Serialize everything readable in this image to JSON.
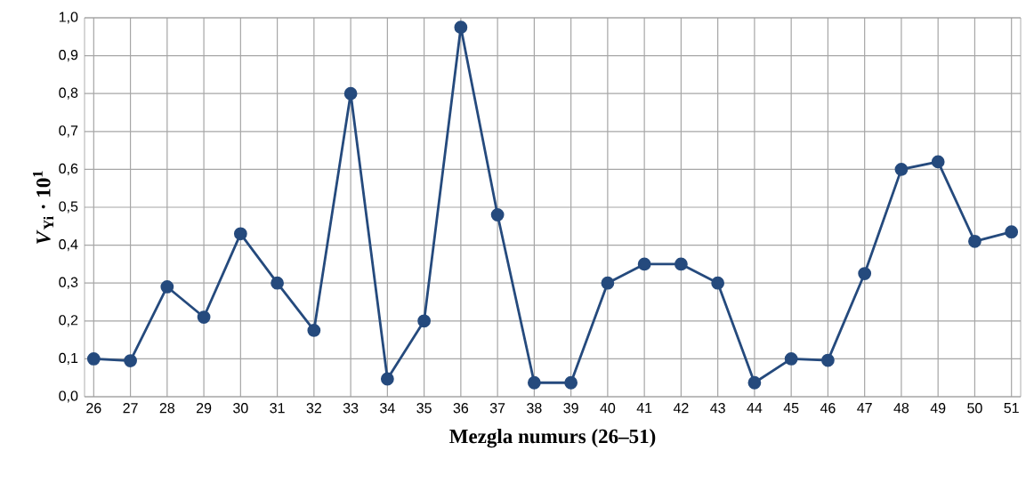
{
  "chart_data": {
    "type": "line",
    "xlabel": "Mezgla numurs (26–51)",
    "ylabel": "*V*$_{Yi}$ · 10$^{1}$",
    "categories": [
      "26",
      "27",
      "28",
      "29",
      "30",
      "31",
      "32",
      "33",
      "34",
      "35",
      "36",
      "37",
      "38",
      "39",
      "40",
      "41",
      "42",
      "43",
      "44",
      "45",
      "46",
      "47",
      "48",
      "49",
      "50",
      "51"
    ],
    "series": [
      {
        "color": "#254a7d",
        "values": [
          0.1,
          0.095,
          0.29,
          0.21,
          0.43,
          0.3,
          0.175,
          0.8,
          0.047,
          0.2,
          0.975,
          0.48,
          0.037,
          0.037,
          0.3,
          0.35,
          0.35,
          0.3,
          0.037,
          0.1,
          0.096,
          0.325,
          0.6,
          0.62,
          0.41,
          0.435
        ]
      }
    ],
    "ylim": [
      0,
      1
    ],
    "yticks": [
      {
        "value": 0,
        "label": "0,0"
      },
      {
        "value": 0.1,
        "label": "0,1"
      },
      {
        "value": 0.2,
        "label": "0,2"
      },
      {
        "value": 0.3,
        "label": "0,3"
      },
      {
        "value": 0.4,
        "label": "0,4"
      },
      {
        "value": 0.5,
        "label": "0,5"
      },
      {
        "value": 0.6,
        "label": "0,6"
      },
      {
        "value": 0.7,
        "label": "0,7"
      },
      {
        "value": 0.8,
        "label": "0,8"
      },
      {
        "value": 0.9,
        "label": "0,9"
      },
      {
        "value": 1,
        "label": "1,0"
      }
    ],
    "grid": true,
    "marker": "circle",
    "line_style": "solid"
  }
}
